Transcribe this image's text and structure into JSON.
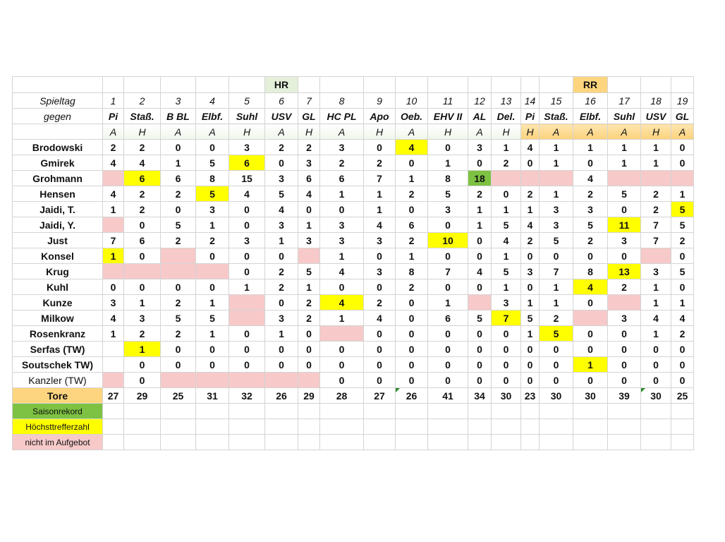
{
  "headers": {
    "hr_label": "HR",
    "rr_label": "RR",
    "spieltag_label": "Spieltag",
    "gegen_label": "gegen",
    "matchdays": [
      "1",
      "2",
      "3",
      "4",
      "5",
      "6",
      "7",
      "8",
      "9",
      "10",
      "11",
      "12",
      "13",
      "14",
      "15",
      "16",
      "17",
      "18",
      "19"
    ],
    "opponents": [
      "Pi",
      "Staß.",
      "B BL",
      "Elbf.",
      "Suhl",
      "USV",
      "GL",
      "HC PL",
      "Apo",
      "Oeb.",
      "EHV II",
      "AL",
      "Del.",
      "Pi",
      "Staß.",
      "Elbf.",
      "Suhl",
      "USV",
      "GL"
    ],
    "venues": [
      "A",
      "H",
      "A",
      "A",
      "H",
      "A",
      "H",
      "A",
      "H",
      "A",
      "H",
      "A",
      "H",
      "H",
      "A",
      "A",
      "A",
      "H",
      "A"
    ]
  },
  "players": [
    {
      "name": "Brodowski",
      "cells": [
        {
          "v": "2"
        },
        {
          "v": "2"
        },
        {
          "v": "0"
        },
        {
          "v": "0"
        },
        {
          "v": "3"
        },
        {
          "v": "2"
        },
        {
          "v": "2"
        },
        {
          "v": "3"
        },
        {
          "v": "0"
        },
        {
          "v": "4",
          "s": "yel"
        },
        {
          "v": "0"
        },
        {
          "v": "3"
        },
        {
          "v": "1"
        },
        {
          "v": "4"
        },
        {
          "v": "1"
        },
        {
          "v": "1"
        },
        {
          "v": "1"
        },
        {
          "v": "1"
        },
        {
          "v": "0"
        }
      ]
    },
    {
      "name": "Gmirek",
      "cells": [
        {
          "v": "4"
        },
        {
          "v": "4"
        },
        {
          "v": "1"
        },
        {
          "v": "5"
        },
        {
          "v": "6",
          "s": "yel"
        },
        {
          "v": "0"
        },
        {
          "v": "3"
        },
        {
          "v": "2"
        },
        {
          "v": "2"
        },
        {
          "v": "0"
        },
        {
          "v": "1"
        },
        {
          "v": "0"
        },
        {
          "v": "2"
        },
        {
          "v": "0"
        },
        {
          "v": "1"
        },
        {
          "v": "0"
        },
        {
          "v": "1"
        },
        {
          "v": "1"
        },
        {
          "v": "0"
        }
      ]
    },
    {
      "name": "Grohmann",
      "cells": [
        {
          "v": "",
          "s": "pnk"
        },
        {
          "v": "6",
          "s": "yel"
        },
        {
          "v": "6"
        },
        {
          "v": "8"
        },
        {
          "v": "15"
        },
        {
          "v": "3"
        },
        {
          "v": "6"
        },
        {
          "v": "6"
        },
        {
          "v": "7"
        },
        {
          "v": "1"
        },
        {
          "v": "8"
        },
        {
          "v": "18",
          "s": "grn"
        },
        {
          "v": "",
          "s": "pnk"
        },
        {
          "v": "",
          "s": "pnk"
        },
        {
          "v": "",
          "s": "pnk"
        },
        {
          "v": "4"
        },
        {
          "v": "",
          "s": "pnk"
        },
        {
          "v": "",
          "s": "pnk"
        },
        {
          "v": "",
          "s": "pnk"
        }
      ]
    },
    {
      "name": "Hensen",
      "cells": [
        {
          "v": "4"
        },
        {
          "v": "2"
        },
        {
          "v": "2"
        },
        {
          "v": "5",
          "s": "yel"
        },
        {
          "v": "4"
        },
        {
          "v": "5"
        },
        {
          "v": "4"
        },
        {
          "v": "1"
        },
        {
          "v": "1"
        },
        {
          "v": "2"
        },
        {
          "v": "5"
        },
        {
          "v": "2"
        },
        {
          "v": "0"
        },
        {
          "v": "2"
        },
        {
          "v": "1"
        },
        {
          "v": "2"
        },
        {
          "v": "5"
        },
        {
          "v": "2"
        },
        {
          "v": "1"
        }
      ]
    },
    {
      "name": "Jaidi, T.",
      "cells": [
        {
          "v": "1"
        },
        {
          "v": "2"
        },
        {
          "v": "0"
        },
        {
          "v": "3"
        },
        {
          "v": "0"
        },
        {
          "v": "4"
        },
        {
          "v": "0"
        },
        {
          "v": "0"
        },
        {
          "v": "1"
        },
        {
          "v": "0"
        },
        {
          "v": "3"
        },
        {
          "v": "1"
        },
        {
          "v": "1"
        },
        {
          "v": "1"
        },
        {
          "v": "3"
        },
        {
          "v": "3"
        },
        {
          "v": "0"
        },
        {
          "v": "2"
        },
        {
          "v": "5",
          "s": "yel"
        }
      ]
    },
    {
      "name": "Jaidi, Y.",
      "cells": [
        {
          "v": "",
          "s": "pnk"
        },
        {
          "v": "0"
        },
        {
          "v": "5"
        },
        {
          "v": "1"
        },
        {
          "v": "0"
        },
        {
          "v": "3"
        },
        {
          "v": "1"
        },
        {
          "v": "3"
        },
        {
          "v": "4"
        },
        {
          "v": "6"
        },
        {
          "v": "0"
        },
        {
          "v": "1"
        },
        {
          "v": "5"
        },
        {
          "v": "4"
        },
        {
          "v": "3"
        },
        {
          "v": "5"
        },
        {
          "v": "11",
          "s": "yel"
        },
        {
          "v": "7"
        },
        {
          "v": "5"
        }
      ]
    },
    {
      "name": "Just",
      "cells": [
        {
          "v": "7"
        },
        {
          "v": "6"
        },
        {
          "v": "2"
        },
        {
          "v": "2"
        },
        {
          "v": "3"
        },
        {
          "v": "1"
        },
        {
          "v": "3"
        },
        {
          "v": "3"
        },
        {
          "v": "3"
        },
        {
          "v": "2"
        },
        {
          "v": "10",
          "s": "yel"
        },
        {
          "v": "0"
        },
        {
          "v": "4"
        },
        {
          "v": "2"
        },
        {
          "v": "5"
        },
        {
          "v": "2"
        },
        {
          "v": "3"
        },
        {
          "v": "7"
        },
        {
          "v": "2"
        }
      ]
    },
    {
      "name": "Konsel",
      "cells": [
        {
          "v": "1",
          "s": "yel"
        },
        {
          "v": "0"
        },
        {
          "v": "",
          "s": "pnk"
        },
        {
          "v": "0"
        },
        {
          "v": "0"
        },
        {
          "v": "0"
        },
        {
          "v": "",
          "s": "pnk"
        },
        {
          "v": "1"
        },
        {
          "v": "0"
        },
        {
          "v": "1"
        },
        {
          "v": "0"
        },
        {
          "v": "0"
        },
        {
          "v": "1"
        },
        {
          "v": "0"
        },
        {
          "v": "0"
        },
        {
          "v": "0"
        },
        {
          "v": "0"
        },
        {
          "v": "",
          "s": "pnk"
        },
        {
          "v": "0"
        }
      ]
    },
    {
      "name": "Krug",
      "cells": [
        {
          "v": "",
          "s": "pnk"
        },
        {
          "v": "",
          "s": "pnk"
        },
        {
          "v": "",
          "s": "pnk"
        },
        {
          "v": "",
          "s": "pnk"
        },
        {
          "v": "0"
        },
        {
          "v": "2"
        },
        {
          "v": "5"
        },
        {
          "v": "4"
        },
        {
          "v": "3"
        },
        {
          "v": "8"
        },
        {
          "v": "7"
        },
        {
          "v": "4"
        },
        {
          "v": "5"
        },
        {
          "v": "3"
        },
        {
          "v": "7"
        },
        {
          "v": "8"
        },
        {
          "v": "13",
          "s": "yel"
        },
        {
          "v": "3"
        },
        {
          "v": "5"
        }
      ]
    },
    {
      "name": "Kuhl",
      "cells": [
        {
          "v": "0"
        },
        {
          "v": "0"
        },
        {
          "v": "0"
        },
        {
          "v": "0"
        },
        {
          "v": "1"
        },
        {
          "v": "2"
        },
        {
          "v": "1"
        },
        {
          "v": "0"
        },
        {
          "v": "0"
        },
        {
          "v": "2"
        },
        {
          "v": "0"
        },
        {
          "v": "0"
        },
        {
          "v": "1"
        },
        {
          "v": "0"
        },
        {
          "v": "1"
        },
        {
          "v": "4",
          "s": "yel"
        },
        {
          "v": "2"
        },
        {
          "v": "1"
        },
        {
          "v": "0"
        }
      ]
    },
    {
      "name": "Kunze",
      "cells": [
        {
          "v": "3"
        },
        {
          "v": "1"
        },
        {
          "v": "2"
        },
        {
          "v": "1"
        },
        {
          "v": "",
          "s": "pnk"
        },
        {
          "v": "0"
        },
        {
          "v": "2"
        },
        {
          "v": "4",
          "s": "yel"
        },
        {
          "v": "2"
        },
        {
          "v": "0"
        },
        {
          "v": "1"
        },
        {
          "v": "",
          "s": "pnk"
        },
        {
          "v": "3"
        },
        {
          "v": "1"
        },
        {
          "v": "1"
        },
        {
          "v": "0"
        },
        {
          "v": "",
          "s": "pnk"
        },
        {
          "v": "1"
        },
        {
          "v": "1"
        }
      ]
    },
    {
      "name": "Milkow",
      "cells": [
        {
          "v": "4"
        },
        {
          "v": "3"
        },
        {
          "v": "5"
        },
        {
          "v": "5"
        },
        {
          "v": "",
          "s": "pnk"
        },
        {
          "v": "3"
        },
        {
          "v": "2"
        },
        {
          "v": "1"
        },
        {
          "v": "4"
        },
        {
          "v": "0"
        },
        {
          "v": "6"
        },
        {
          "v": "5"
        },
        {
          "v": "7",
          "s": "yel"
        },
        {
          "v": "5"
        },
        {
          "v": "2"
        },
        {
          "v": "",
          "s": "pnk"
        },
        {
          "v": "3"
        },
        {
          "v": "4"
        },
        {
          "v": "4"
        }
      ]
    },
    {
      "name": "Rosenkranz",
      "cells": [
        {
          "v": "1"
        },
        {
          "v": "2"
        },
        {
          "v": "2"
        },
        {
          "v": "1"
        },
        {
          "v": "0"
        },
        {
          "v": "1"
        },
        {
          "v": "0"
        },
        {
          "v": "",
          "s": "pnk"
        },
        {
          "v": "0"
        },
        {
          "v": "0"
        },
        {
          "v": "0"
        },
        {
          "v": "0"
        },
        {
          "v": "0"
        },
        {
          "v": "1"
        },
        {
          "v": "5",
          "s": "yel"
        },
        {
          "v": "0"
        },
        {
          "v": "0"
        },
        {
          "v": "1"
        },
        {
          "v": "2"
        }
      ]
    },
    {
      "name": "Serfas (TW)",
      "cells": [
        {
          "v": ""
        },
        {
          "v": "1",
          "s": "yel"
        },
        {
          "v": "0"
        },
        {
          "v": "0"
        },
        {
          "v": "0"
        },
        {
          "v": "0"
        },
        {
          "v": "0"
        },
        {
          "v": "0"
        },
        {
          "v": "0"
        },
        {
          "v": "0"
        },
        {
          "v": "0"
        },
        {
          "v": "0"
        },
        {
          "v": "0"
        },
        {
          "v": "0"
        },
        {
          "v": "0"
        },
        {
          "v": "0"
        },
        {
          "v": "0"
        },
        {
          "v": "0"
        },
        {
          "v": "0"
        }
      ]
    },
    {
      "name": "Soutschek TW)",
      "cells": [
        {
          "v": ""
        },
        {
          "v": "0"
        },
        {
          "v": "0"
        },
        {
          "v": "0"
        },
        {
          "v": "0"
        },
        {
          "v": "0"
        },
        {
          "v": "0"
        },
        {
          "v": "0"
        },
        {
          "v": "0"
        },
        {
          "v": "0"
        },
        {
          "v": "0"
        },
        {
          "v": "0"
        },
        {
          "v": "0"
        },
        {
          "v": "0"
        },
        {
          "v": "0"
        },
        {
          "v": "1",
          "s": "yel"
        },
        {
          "v": "0"
        },
        {
          "v": "0"
        },
        {
          "v": "0"
        }
      ]
    },
    {
      "name": "Kanzler (TW)",
      "light": true,
      "cells": [
        {
          "v": "",
          "s": "pnk"
        },
        {
          "v": "0"
        },
        {
          "v": "",
          "s": "pnk"
        },
        {
          "v": "",
          "s": "pnk"
        },
        {
          "v": "",
          "s": "pnk"
        },
        {
          "v": "",
          "s": "pnk"
        },
        {
          "v": "",
          "s": "pnk"
        },
        {
          "v": "0"
        },
        {
          "v": "0"
        },
        {
          "v": "0"
        },
        {
          "v": "0"
        },
        {
          "v": "0"
        },
        {
          "v": "0"
        },
        {
          "v": "0"
        },
        {
          "v": "0"
        },
        {
          "v": "0"
        },
        {
          "v": "0"
        },
        {
          "v": "0"
        },
        {
          "v": "0"
        }
      ]
    }
  ],
  "totals": {
    "label": "Tore",
    "values": [
      "27",
      "29",
      "25",
      "31",
      "32",
      "26",
      "29",
      "28",
      "27",
      "26",
      "41",
      "34",
      "30",
      "23",
      "30",
      "30",
      "39",
      "30",
      "25"
    ],
    "tagged": [
      10,
      18
    ]
  },
  "legend": [
    {
      "label": "Saisonrekord",
      "color": "#7dc242"
    },
    {
      "label": "Höchsttrefferzahl",
      "color": "#ffff00"
    },
    {
      "label": "nicht im Aufgebot",
      "color": "#f7c9c9"
    }
  ]
}
